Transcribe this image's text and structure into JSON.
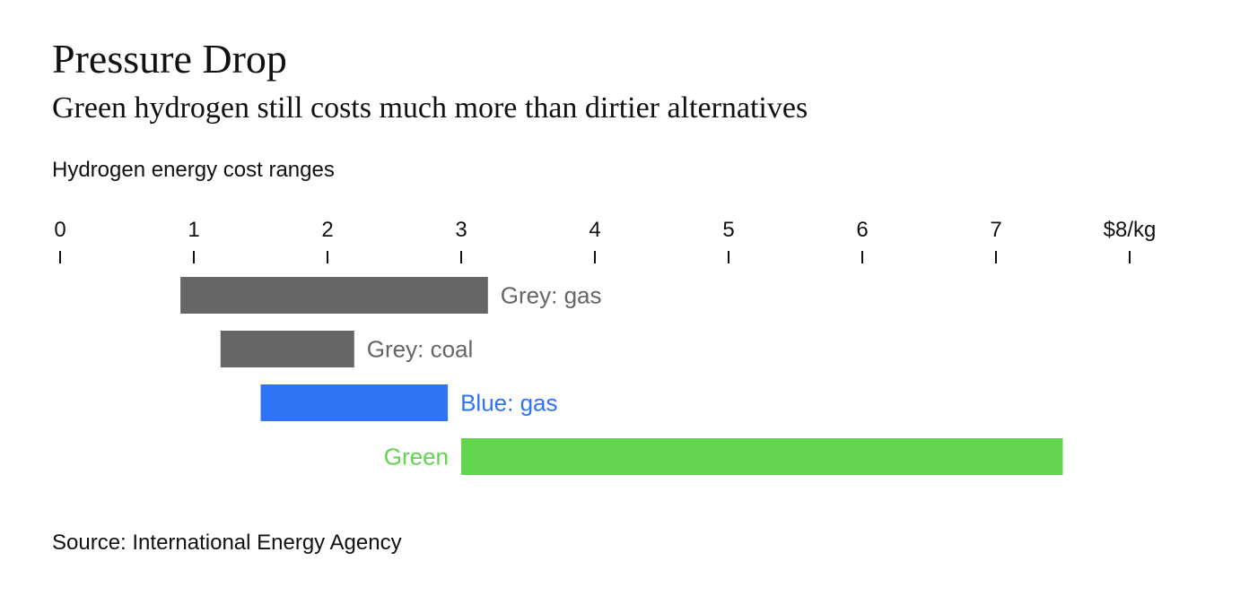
{
  "title": "Pressure Drop",
  "subtitle": "Green hydrogen still costs much more than dirtier alternatives",
  "chart_label": "Hydrogen energy cost ranges",
  "source": "Source: International Energy Agency",
  "chart_data": {
    "type": "bar",
    "orientation": "horizontal-range",
    "xlim": [
      0,
      8
    ],
    "tick_labels": [
      "0",
      "1",
      "2",
      "3",
      "4",
      "5",
      "6",
      "7",
      "$8/kg"
    ],
    "ticks": [
      0,
      1,
      2,
      3,
      4,
      5,
      6,
      7,
      8
    ],
    "grid": false,
    "legend": "none",
    "series": [
      {
        "name": "Grey: gas",
        "start": 0.9,
        "end": 3.2,
        "color": "#666666",
        "label_position": "right"
      },
      {
        "name": "Grey: coal",
        "start": 1.2,
        "end": 2.2,
        "color": "#666666",
        "label_position": "right"
      },
      {
        "name": "Blue: gas",
        "start": 1.5,
        "end": 2.9,
        "color": "#2f74f5",
        "label_position": "right"
      },
      {
        "name": "Green",
        "start": 3.0,
        "end": 7.5,
        "color": "#62d44d",
        "label_position": "left"
      }
    ]
  }
}
